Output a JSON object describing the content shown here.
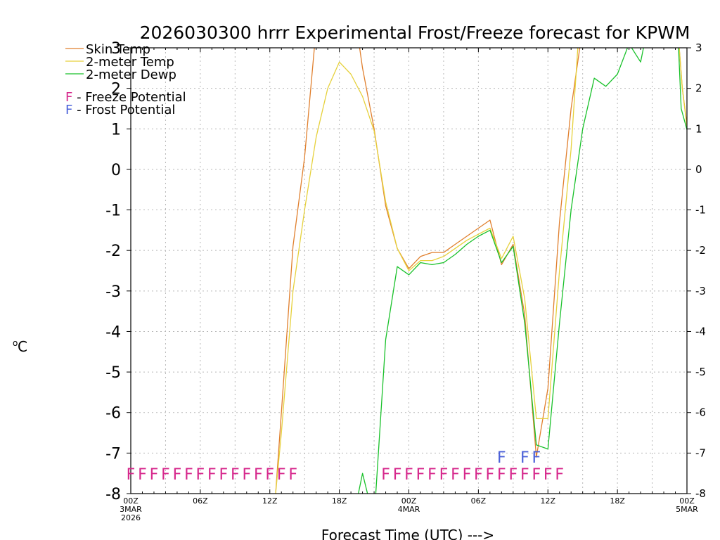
{
  "chart_data": {
    "type": "line",
    "title": "2026030300 hrrr Experimental Frost/Freeze forecast for KPWM",
    "ylabel_unit": "o",
    "ylabel_letter": "C",
    "xlabel": "Forecast Time (UTC) --->",
    "ylim": [
      -8,
      3
    ],
    "xlim": [
      0,
      48
    ],
    "yticks": [
      -8,
      -7,
      -6,
      -5,
      -4,
      -3,
      -2,
      -1,
      0,
      1,
      2,
      3
    ],
    "ytick_labels": [
      "-8",
      "-7",
      "-6",
      "-5",
      "-4",
      "-3",
      "-2",
      "-1",
      "0",
      "1",
      "2",
      "3"
    ],
    "xticks": [
      {
        "x": 0,
        "lines": [
          "00Z",
          "3MAR",
          "2026"
        ]
      },
      {
        "x": 6,
        "lines": [
          "06Z"
        ]
      },
      {
        "x": 12,
        "lines": [
          "12Z"
        ]
      },
      {
        "x": 18,
        "lines": [
          "18Z"
        ]
      },
      {
        "x": 24,
        "lines": [
          "00Z",
          "4MAR"
        ]
      },
      {
        "x": 30,
        "lines": [
          "06Z"
        ]
      },
      {
        "x": 36,
        "lines": [
          "12Z"
        ]
      },
      {
        "x": 42,
        "lines": [
          "18Z"
        ]
      },
      {
        "x": 48,
        "lines": [
          "00Z",
          "5MAR"
        ]
      }
    ],
    "series": [
      {
        "name": "Skin Temp",
        "color": "#e07f2d",
        "points": [
          [
            12.5,
            -8
          ],
          [
            13,
            -6
          ],
          [
            14,
            -1.9
          ],
          [
            15,
            0.3
          ],
          [
            16,
            3.5
          ],
          [
            19.5,
            3.5
          ],
          [
            20,
            2.5
          ],
          [
            21,
            1
          ],
          [
            22,
            -0.9
          ],
          [
            23,
            -1.95
          ],
          [
            24,
            -2.45
          ],
          [
            25,
            -2.15
          ],
          [
            26,
            -2.05
          ],
          [
            27,
            -2.05
          ],
          [
            28,
            -1.85
          ],
          [
            29,
            -1.65
          ],
          [
            30,
            -1.45
          ],
          [
            31,
            -1.25
          ],
          [
            32,
            -2.35
          ],
          [
            33,
            -1.85
          ],
          [
            34,
            -3.6
          ],
          [
            35,
            -7.1
          ],
          [
            36,
            -5.4
          ],
          [
            37,
            -1.3
          ],
          [
            38,
            1.5
          ],
          [
            39,
            3.5
          ],
          [
            47.2,
            3.5
          ],
          [
            47.6,
            2
          ],
          [
            48,
            1.1
          ]
        ]
      },
      {
        "name": "2-meter Temp",
        "color": "#e6d13c",
        "points": [
          [
            12.5,
            -8
          ],
          [
            13,
            -6.5
          ],
          [
            14,
            -3
          ],
          [
            15,
            -1
          ],
          [
            16,
            0.8
          ],
          [
            17,
            2
          ],
          [
            18,
            2.65
          ],
          [
            19,
            2.35
          ],
          [
            20,
            1.8
          ],
          [
            21,
            0.95
          ],
          [
            22,
            -0.8
          ],
          [
            23,
            -1.95
          ],
          [
            24,
            -2.5
          ],
          [
            25,
            -2.25
          ],
          [
            26,
            -2.25
          ],
          [
            27,
            -2.15
          ],
          [
            28,
            -1.95
          ],
          [
            29,
            -1.75
          ],
          [
            30,
            -1.6
          ],
          [
            31,
            -1.45
          ],
          [
            32,
            -2.2
          ],
          [
            33,
            -1.65
          ],
          [
            34,
            -3.2
          ],
          [
            35,
            -6.15
          ],
          [
            36,
            -6.15
          ],
          [
            37,
            -2.5
          ],
          [
            38,
            0.5
          ],
          [
            38.7,
            3.5
          ],
          [
            47.2,
            3.5
          ],
          [
            47.6,
            2
          ],
          [
            48,
            1.05
          ]
        ]
      },
      {
        "name": "2-meter Dewp",
        "color": "#19c12a",
        "points": [
          [
            19.5,
            -8.2
          ],
          [
            20,
            -7.5
          ],
          [
            20.6,
            -8.2
          ],
          [
            21.1,
            -8.2
          ],
          [
            22,
            -4.2
          ],
          [
            23,
            -2.4
          ],
          [
            24,
            -2.6
          ],
          [
            25,
            -2.3
          ],
          [
            26,
            -2.35
          ],
          [
            27,
            -2.3
          ],
          [
            28,
            -2.1
          ],
          [
            29,
            -1.85
          ],
          [
            30,
            -1.65
          ],
          [
            31,
            -1.5
          ],
          [
            32,
            -2.3
          ],
          [
            33,
            -1.9
          ],
          [
            34,
            -3.8
          ],
          [
            35,
            -6.8
          ],
          [
            36,
            -6.9
          ],
          [
            37,
            -3.8
          ],
          [
            38,
            -1
          ],
          [
            39,
            1
          ],
          [
            40,
            2.25
          ],
          [
            41,
            2.05
          ],
          [
            42,
            2.35
          ],
          [
            43,
            3.1
          ],
          [
            44,
            2.65
          ],
          [
            44.6,
            3.5
          ],
          [
            47.2,
            3.5
          ],
          [
            47.5,
            1.5
          ],
          [
            48,
            0.98
          ]
        ]
      }
    ],
    "legend": [
      {
        "label": "Skin Temp",
        "color": "#e07f2d"
      },
      {
        "label": "2-meter Temp",
        "color": "#e6d13c"
      },
      {
        "label": "2-meter Dewp",
        "color": "#19c12a"
      }
    ],
    "flag_legend": [
      {
        "letter": "F",
        "label": " - Freeze Potential",
        "color": "#d6288c"
      },
      {
        "letter": "F",
        "label": " - Frost Potential",
        "color": "#4a60d8"
      }
    ],
    "freeze_color": "#d6288c",
    "frost_color": "#4a60d8",
    "freeze_flags": [
      0,
      1,
      2,
      3,
      4,
      5,
      6,
      7,
      8,
      9,
      10,
      11,
      12,
      13,
      14,
      22,
      23,
      24,
      25,
      26,
      27,
      28,
      29,
      30,
      31,
      32,
      33,
      34,
      35,
      36,
      37
    ],
    "frost_flags": [
      32,
      34,
      35
    ]
  }
}
